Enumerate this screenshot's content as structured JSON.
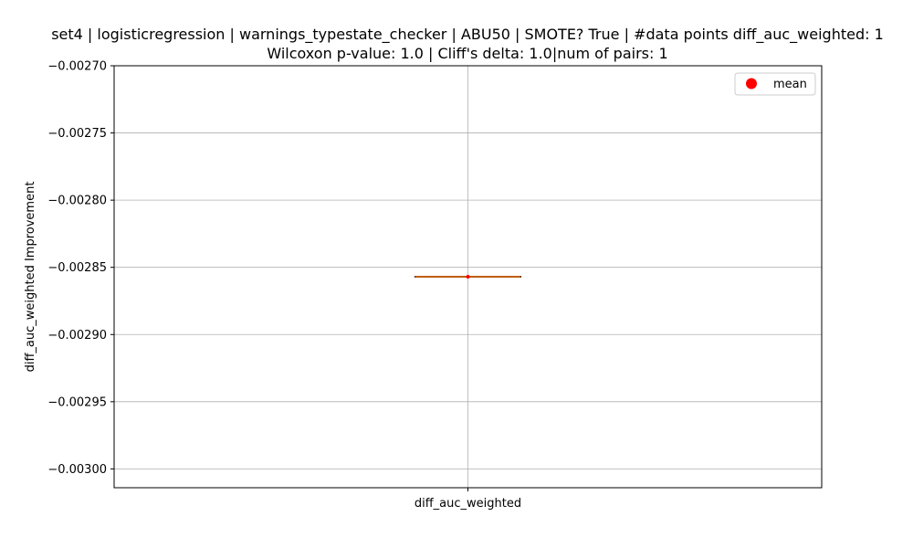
{
  "chart_data": {
    "type": "box",
    "title_line1": "set4 | logisticregression | warnings_typestate_checker | ABU50 | SMOTE? True | #data points diff_auc_weighted: 1",
    "title_line2": "Wilcoxon p-value: 1.0 | Cliff's delta: 1.0|num of pairs: 1",
    "ylabel": "diff_auc_weighted Improvement",
    "xlabel": "",
    "categories": [
      "diff_auc_weighted"
    ],
    "ylim": [
      -0.003014,
      -0.0027
    ],
    "yticks": [
      -0.0027,
      -0.00275,
      -0.0028,
      -0.00285,
      -0.0029,
      -0.00295,
      -0.003
    ],
    "ytick_labels": [
      "−0.00270",
      "−0.00275",
      "−0.00280",
      "−0.00285",
      "−0.00290",
      "−0.00295",
      "−0.00300"
    ],
    "series": [
      {
        "category": "diff_auc_weighted",
        "min": -0.002857,
        "q1": -0.002857,
        "median": -0.002857,
        "q3": -0.002857,
        "max": -0.002857,
        "mean": -0.002857
      }
    ],
    "legend": {
      "entries": [
        "mean"
      ],
      "placement": "top-right"
    },
    "grid": true,
    "colors": {
      "box": "#000000",
      "median": "#ff7f0e",
      "mean": "#ff0000",
      "grid": "#b0b0b0"
    }
  }
}
